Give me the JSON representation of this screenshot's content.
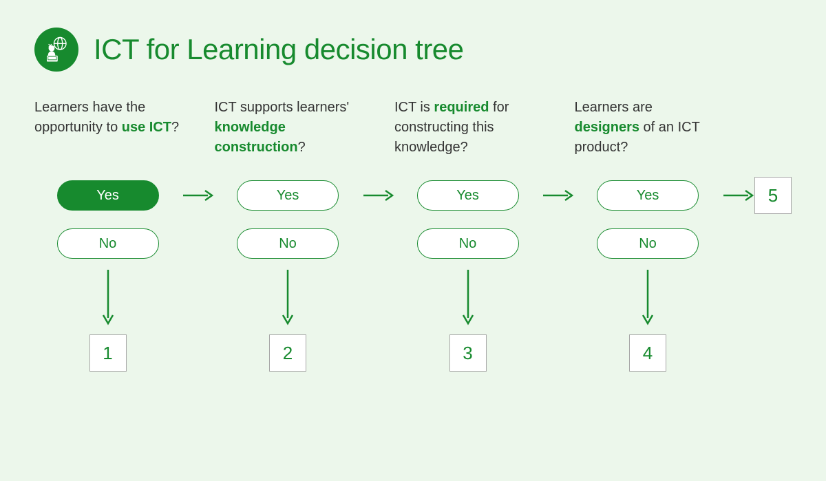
{
  "type": "flowchart",
  "title": "ICT for Learning decision tree",
  "background_color": "#ecf7eb",
  "accent_color": "#178a2e",
  "text_color": "#333333",
  "box_border_color": "#a7a7a7",
  "title_fontsize": 42,
  "question_fontsize": 20,
  "pill_fontsize": 20,
  "result_fontsize": 26,
  "columns": [
    {
      "q_pre": "Learners have the opportunity to ",
      "q_bold": "use ICT",
      "q_post": "?",
      "yes": "Yes",
      "no": "No",
      "yes_filled": true,
      "result": "1"
    },
    {
      "q_pre": "ICT supports learners' ",
      "q_bold": "knowledge construction",
      "q_post": "?",
      "yes": "Yes",
      "no": "No",
      "yes_filled": false,
      "result": "2"
    },
    {
      "q_pre": "ICT is ",
      "q_bold": "required",
      "q_post": " for constructing this knowledge?",
      "yes": "Yes",
      "no": "No",
      "yes_filled": false,
      "result": "3"
    },
    {
      "q_pre": "Learners are ",
      "q_bold": "designers",
      "q_post": " of an ICT product?",
      "yes": "Yes",
      "no": "No",
      "yes_filled": false,
      "result": "4"
    }
  ],
  "final_result": "5",
  "arrow_stroke_width": 2.5,
  "pill_width": 148,
  "pill_height": 44,
  "result_box_size": 54
}
